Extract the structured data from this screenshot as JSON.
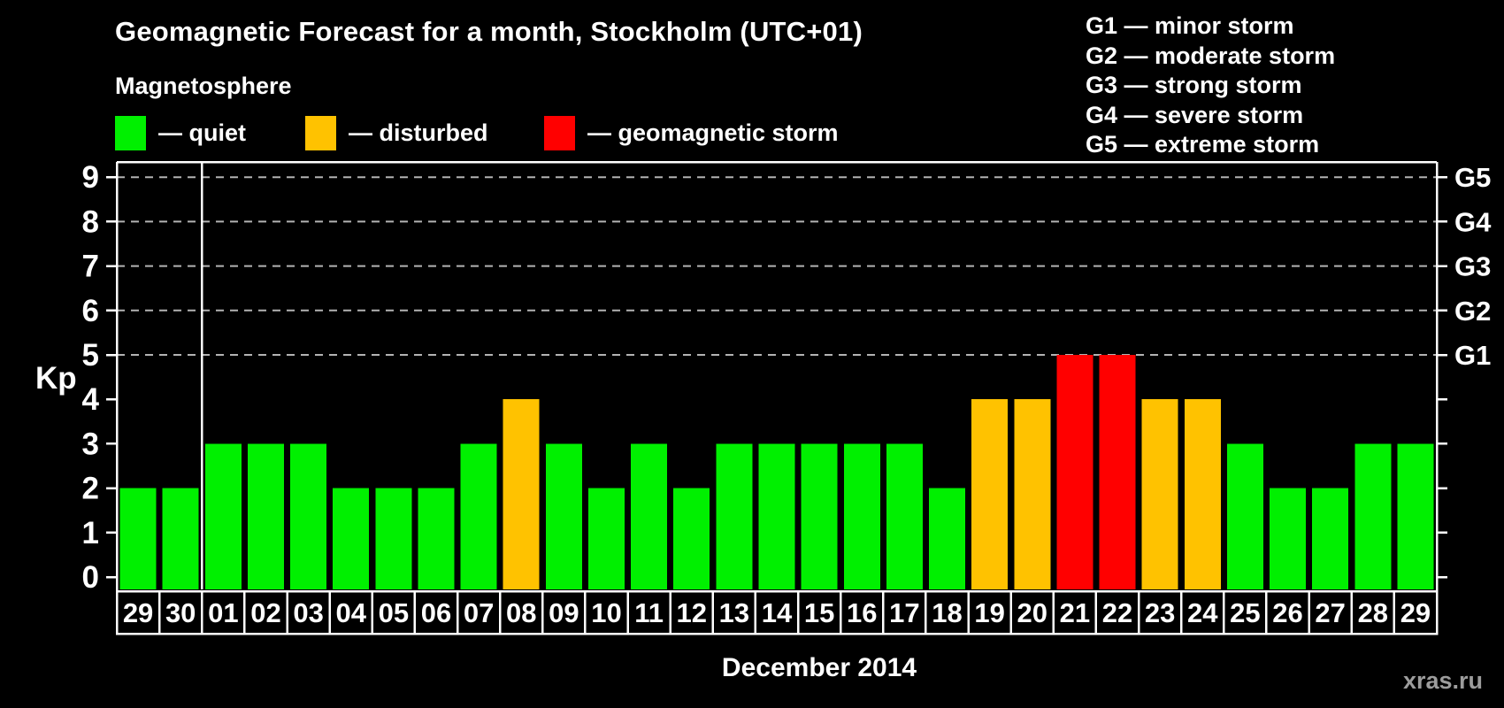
{
  "header": {
    "title": "Geomagnetic Forecast for a month, Stockholm (UTC+01)",
    "subtitle": "Magnetosphere"
  },
  "legend": {
    "items": [
      {
        "key": "quiet",
        "label": "— quiet",
        "color": "#00f000"
      },
      {
        "key": "disturbed",
        "label": "— disturbed",
        "color": "#ffc200"
      },
      {
        "key": "storm",
        "label": "— geomagnetic storm",
        "color": "#ff0000"
      }
    ]
  },
  "storm_scale": {
    "items": [
      {
        "label": "G1 — minor storm"
      },
      {
        "label": "G2 — moderate storm"
      },
      {
        "label": "G3 — strong storm"
      },
      {
        "label": "G4 — severe storm"
      },
      {
        "label": "G5 — extreme storm"
      }
    ]
  },
  "chart_data": {
    "type": "bar",
    "title": "Geomagnetic Forecast for a month, Stockholm (UTC+01)",
    "xlabel": "December 2014",
    "ylabel": "Kp",
    "ylim": [
      0,
      9.35
    ],
    "y_ticks": [
      0,
      1,
      2,
      3,
      4,
      5,
      6,
      7,
      8,
      9
    ],
    "grid_levels": [
      5,
      6,
      7,
      8,
      9
    ],
    "grid_on": true,
    "legend_position": "top-left",
    "right_axis": [
      {
        "level": 5,
        "label": "G1"
      },
      {
        "level": 6,
        "label": "G2"
      },
      {
        "level": 7,
        "label": "G3"
      },
      {
        "level": 8,
        "label": "G4"
      },
      {
        "level": 9,
        "label": "G5"
      }
    ],
    "categories": [
      "29",
      "30",
      "01",
      "02",
      "03",
      "04",
      "05",
      "06",
      "07",
      "08",
      "09",
      "10",
      "11",
      "12",
      "13",
      "14",
      "15",
      "16",
      "17",
      "18",
      "19",
      "20",
      "21",
      "22",
      "23",
      "24",
      "25",
      "26",
      "27",
      "28",
      "29"
    ],
    "values": [
      2,
      2,
      3,
      3,
      3,
      2,
      2,
      2,
      3,
      4,
      3,
      2,
      3,
      2,
      3,
      3,
      3,
      3,
      3,
      2,
      4,
      4,
      5,
      5,
      4,
      4,
      3,
      2,
      2,
      3,
      3
    ],
    "statuses": [
      "quiet",
      "quiet",
      "quiet",
      "quiet",
      "quiet",
      "quiet",
      "quiet",
      "quiet",
      "quiet",
      "disturbed",
      "quiet",
      "quiet",
      "quiet",
      "quiet",
      "quiet",
      "quiet",
      "quiet",
      "quiet",
      "quiet",
      "quiet",
      "disturbed",
      "disturbed",
      "storm",
      "storm",
      "disturbed",
      "disturbed",
      "quiet",
      "quiet",
      "quiet",
      "quiet",
      "quiet"
    ],
    "month_separator_after": 2
  },
  "footer": {
    "watermark": "xras.ru"
  },
  "colors": {
    "background": "#000000",
    "text": "#ffffff",
    "grid": "#b3b3b3",
    "axis": "#ffffff",
    "watermark": "#9c9c9c",
    "quiet": "#00f000",
    "disturbed": "#ffc200",
    "storm": "#ff0000"
  }
}
